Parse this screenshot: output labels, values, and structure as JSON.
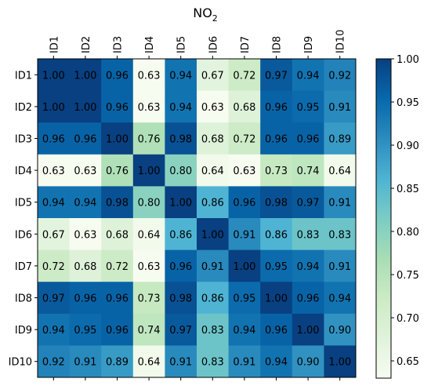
{
  "chart_data": {
    "type": "heatmap",
    "title_main": "NO",
    "title_sub": "2",
    "row_labels": [
      "ID1",
      "ID2",
      "ID3",
      "ID4",
      "ID5",
      "ID6",
      "ID7",
      "ID8",
      "ID9",
      "ID10"
    ],
    "col_labels": [
      "ID1",
      "ID2",
      "ID3",
      "ID4",
      "ID5",
      "ID6",
      "ID7",
      "ID8",
      "ID9",
      "ID10"
    ],
    "values": [
      [
        1.0,
        1.0,
        0.96,
        0.63,
        0.94,
        0.67,
        0.72,
        0.97,
        0.94,
        0.92
      ],
      [
        1.0,
        1.0,
        0.96,
        0.63,
        0.94,
        0.63,
        0.68,
        0.96,
        0.95,
        0.91
      ],
      [
        0.96,
        0.96,
        1.0,
        0.76,
        0.98,
        0.68,
        0.72,
        0.96,
        0.96,
        0.89
      ],
      [
        0.63,
        0.63,
        0.76,
        1.0,
        0.8,
        0.64,
        0.63,
        0.73,
        0.74,
        0.64
      ],
      [
        0.94,
        0.94,
        0.98,
        0.8,
        1.0,
        0.86,
        0.96,
        0.98,
        0.97,
        0.91
      ],
      [
        0.67,
        0.63,
        0.68,
        0.64,
        0.86,
        1.0,
        0.91,
        0.86,
        0.83,
        0.83
      ],
      [
        0.72,
        0.68,
        0.72,
        0.63,
        0.96,
        0.91,
        1.0,
        0.95,
        0.94,
        0.91
      ],
      [
        0.97,
        0.96,
        0.96,
        0.73,
        0.98,
        0.86,
        0.95,
        1.0,
        0.96,
        0.94
      ],
      [
        0.94,
        0.95,
        0.96,
        0.74,
        0.97,
        0.83,
        0.94,
        0.96,
        1.0,
        0.9
      ],
      [
        0.92,
        0.91,
        0.89,
        0.64,
        0.91,
        0.83,
        0.91,
        0.94,
        0.9,
        1.0
      ]
    ],
    "cell_labels": [
      [
        "1.00",
        "1.00",
        "0.96",
        "0.63",
        "0.94",
        "0.67",
        "0.72",
        "0.97",
        "0.94",
        "0.92"
      ],
      [
        "1.00",
        "1.00",
        "0.96",
        "0.63",
        "0.94",
        "0.63",
        "0.68",
        "0.96",
        "0.95",
        "0.91"
      ],
      [
        "0.96",
        "0.96",
        "1.00",
        "0.76",
        "0.98",
        "0.68",
        "0.72",
        "0.96",
        "0.96",
        "0.89"
      ],
      [
        "0.63",
        "0.63",
        "0.76",
        "1.00",
        "0.80",
        "0.64",
        "0.63",
        "0.73",
        "0.74",
        "0.64"
      ],
      [
        "0.94",
        "0.94",
        "0.98",
        "0.80",
        "1.00",
        "0.86",
        "0.96",
        "0.98",
        "0.97",
        "0.91"
      ],
      [
        "0.67",
        "0.63",
        "0.68",
        "0.64",
        "0.86",
        "1.00",
        "0.91",
        "0.86",
        "0.83",
        "0.83"
      ],
      [
        "0.72",
        "0.68",
        "0.72",
        "0.63",
        "0.96",
        "0.91",
        "1.00",
        "0.95",
        "0.94",
        "0.91"
      ],
      [
        "0.97",
        "0.96",
        "0.96",
        "0.73",
        "0.98",
        "0.86",
        "0.95",
        "1.00",
        "0.96",
        "0.94"
      ],
      [
        "0.94",
        "0.95",
        "0.96",
        "0.74",
        "0.97",
        "0.83",
        "0.94",
        "0.96",
        "1.00",
        "0.90"
      ],
      [
        "0.92",
        "0.91",
        "0.89",
        "0.64",
        "0.91",
        "0.83",
        "0.91",
        "0.94",
        "0.90",
        "1.00"
      ]
    ],
    "colorbar": {
      "colormap": "GnBu",
      "range": [
        0.63,
        1.0
      ],
      "ticks": [
        0.65,
        0.7,
        0.75,
        0.8,
        0.85,
        0.9,
        0.95,
        1.0
      ],
      "tick_labels": [
        "0.65",
        "0.70",
        "0.75",
        "0.80",
        "0.85",
        "0.90",
        "0.95",
        "1.00"
      ]
    },
    "colormap_stops": [
      "#f7fcf0",
      "#e0f3db",
      "#ccebc5",
      "#a8ddb5",
      "#7bccc4",
      "#4eb3d3",
      "#2b8cbe",
      "#0868ac",
      "#084081"
    ]
  }
}
